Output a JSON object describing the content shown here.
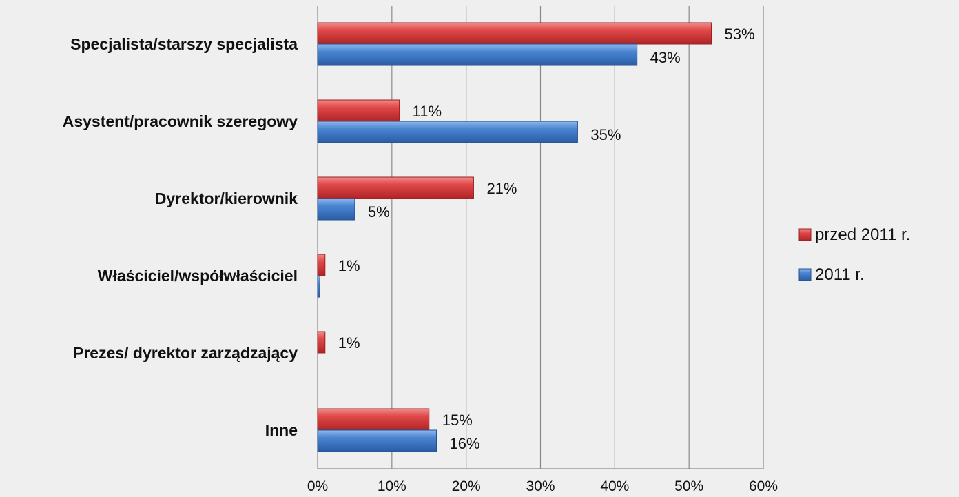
{
  "chart_data": {
    "type": "bar",
    "orientation": "horizontal",
    "categories": [
      "Specjalista/starszy specjalista",
      "Asystent/pracownik szeregowy",
      "Dyrektor/kierownik",
      "Właściciel/współwłaściciel",
      "Prezes/ dyrektor zarządzający",
      "Inne"
    ],
    "series": [
      {
        "name": "przed 2011 r.",
        "color": "#d8393b",
        "values": [
          53,
          11,
          21,
          1,
          1,
          15
        ],
        "labels": [
          "53%",
          "11%",
          "21%",
          "1%",
          "1%",
          "15%"
        ]
      },
      {
        "name": "2011 r.",
        "color": "#3c77c4",
        "values": [
          43,
          35,
          5,
          0.3,
          0,
          16
        ],
        "labels": [
          "43%",
          "35%",
          "5%",
          "",
          "",
          "16%"
        ]
      }
    ],
    "xlim": [
      0,
      60
    ],
    "xticks": [
      "0%",
      "10%",
      "20%",
      "30%",
      "40%",
      "50%",
      "60%"
    ],
    "grid": true,
    "legend_position": "right"
  }
}
